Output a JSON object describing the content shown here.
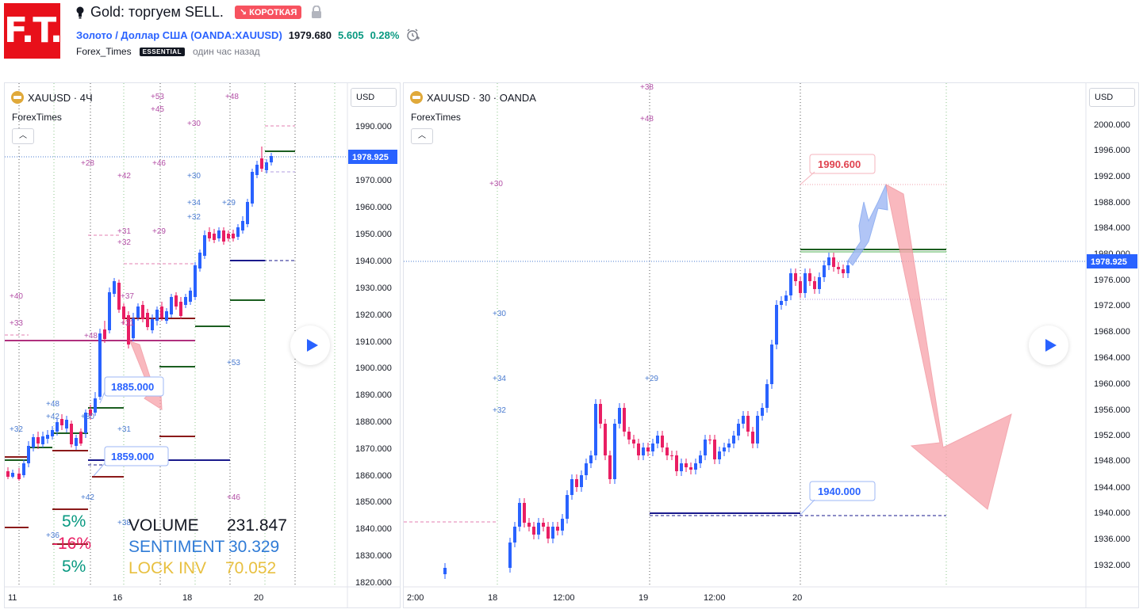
{
  "header": {
    "title": "Gold: торгуем SELL.",
    "badge": "↘ КОРОТКАЯ",
    "logo_text": "F.T.",
    "symbol": "Золото / Доллар США (OANDA:XAUUSD)",
    "price": "1979.680",
    "change": "5.605",
    "change_pct": "0.28%",
    "author": "Forex_Times",
    "author_badge": "ESSENTIAL",
    "time_ago": "один час назад"
  },
  "left_chart": {
    "legend": "XAUUSD · 4Ч",
    "indicator": "ForexTimes",
    "currency": "USD",
    "current_price": "1978.925",
    "y_ticks": [
      "1990.000",
      "1970.000",
      "1960.000",
      "1950.000",
      "1940.000",
      "1930.000",
      "1920.000",
      "1910.000",
      "1900.000",
      "1890.000",
      "1880.000",
      "1870.000",
      "1860.000",
      "1850.000",
      "1840.000",
      "1830.000",
      "1820.000"
    ],
    "x_ticks": [
      "11",
      "16",
      "18",
      "20"
    ],
    "callouts": [
      "1885.000",
      "1859.000"
    ],
    "level_labels": [
      "+53",
      "+45",
      "+48",
      "+30",
      "+28",
      "+42",
      "+46",
      "+30",
      "+34",
      "+32",
      "+29",
      "+31",
      "+32",
      "+29",
      "+40",
      "+33",
      "+37",
      "+48",
      "+31",
      "+48",
      "+42",
      "+30",
      "+32",
      "+31",
      "+42",
      "+38",
      "+36",
      "+46",
      "+53"
    ],
    "stats": {
      "volume_label": "VOLUME",
      "volume_value": "231.847",
      "sentiment_label": "SENTIMENT",
      "sentiment_value": "30.329",
      "lock_label": "LOCK INV",
      "lock_value": "70.052"
    },
    "pcts": [
      "5%",
      "-16%",
      "5%"
    ]
  },
  "right_chart": {
    "legend": "XAUUSD · 30 · OANDA",
    "indicator": "ForexTimes",
    "currency": "USD",
    "current_price": "1978.925",
    "y_ticks": [
      "2000.000",
      "1996.000",
      "1992.000",
      "1988.000",
      "1984.000",
      "1980.000",
      "1976.000",
      "1972.000",
      "1968.000",
      "1964.000",
      "1960.000",
      "1956.000",
      "1952.000",
      "1948.000",
      "1944.000",
      "1940.000",
      "1936.000",
      "1932.000"
    ],
    "x_ticks": [
      "2:00",
      "18",
      "12:00",
      "19",
      "12:00",
      "20"
    ],
    "callouts": [
      "1990.600",
      "1940.000"
    ],
    "level_labels": [
      "+38",
      "+48",
      "+30",
      "+30",
      "+34",
      "+32",
      "+29"
    ]
  },
  "colors": {
    "up": "#2962ff",
    "down": "#e91e63",
    "accent": "#2962ff",
    "sell_arrow": "#f7a1a9",
    "buy_arrow": "#9eb7f5"
  },
  "icons": [
    "lightbulb-icon",
    "lock-icon",
    "alarm-clock-icon",
    "coin-icon",
    "chevron-up-icon",
    "play-icon"
  ]
}
